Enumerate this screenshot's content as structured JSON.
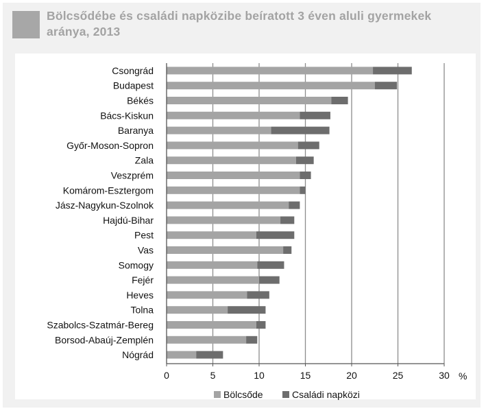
{
  "chart_data": {
    "type": "bar",
    "orientation": "horizontal",
    "stacked": true,
    "title": "Bölcsődébe és családi napközibe beíratott  3 éven aluli gyermekek aránya, 2013",
    "xlabel": "",
    "ylabel": "",
    "unit_label": "%",
    "xlim": [
      0,
      30
    ],
    "xticks": [
      0,
      5,
      10,
      15,
      20,
      25,
      30
    ],
    "grid": true,
    "legend_position": "bottom",
    "categories": [
      "Csongrád",
      "Budapest",
      "Békés",
      "Bács-Kiskun",
      "Baranya",
      "Győr-Moson-Sopron",
      "Zala",
      "Veszprém",
      "Komárom-Esztergom",
      "Jász-Nagykun-Szolnok",
      "Hajdú-Bihar",
      "Pest",
      "Vas",
      "Somogy",
      "Fejér",
      "Heves",
      "Tolna",
      "Szabolcs-Szatmár-Bereg",
      "Borsod-Abaúj-Zemplén",
      "Nógrád"
    ],
    "series": [
      {
        "name": "Bölcsőde",
        "color": "#a4a4a4",
        "values": [
          22.3,
          22.5,
          17.8,
          14.4,
          11.3,
          14.2,
          14.0,
          14.4,
          14.4,
          13.2,
          12.3,
          9.7,
          12.6,
          9.8,
          10.0,
          8.7,
          6.6,
          9.7,
          8.6,
          3.2
        ]
      },
      {
        "name": "Családi napközi",
        "color": "#6d6d6d",
        "values": [
          4.2,
          2.4,
          1.8,
          3.3,
          6.3,
          2.3,
          1.9,
          1.2,
          0.6,
          1.2,
          1.5,
          4.1,
          0.9,
          2.9,
          2.2,
          2.4,
          4.1,
          1.0,
          1.2,
          2.9
        ]
      }
    ]
  }
}
